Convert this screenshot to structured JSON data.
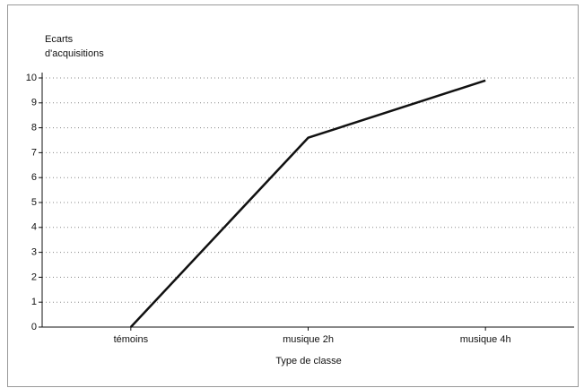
{
  "chart_data": {
    "type": "line",
    "ylabel": [
      "Ecarts",
      "d'acquisitions"
    ],
    "xlabel": "Type de classe",
    "categories": [
      "témoins",
      "musique 2h",
      "musique 4h"
    ],
    "values": [
      0,
      7.6,
      9.9
    ],
    "color": "#111111",
    "ylim": [
      0,
      10
    ],
    "yticks": [
      0,
      1,
      2,
      3,
      4,
      5,
      6,
      7,
      8,
      9,
      10
    ],
    "grid": true
  }
}
